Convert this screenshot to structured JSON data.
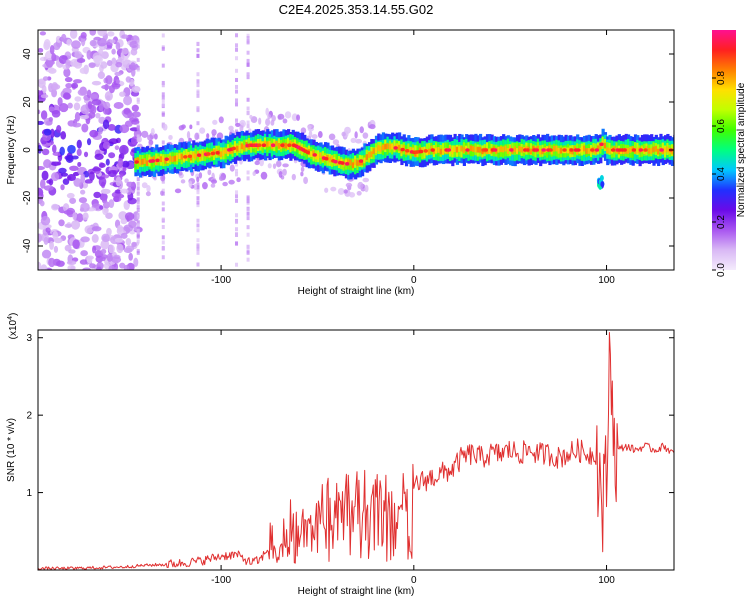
{
  "title": "C2E4.2025.353.14.55.G02",
  "chart_data": [
    {
      "type": "heatmap",
      "name": "spectrogram",
      "xlabel": "Height of straight line (km)",
      "ylabel": "Frequency (Hz)",
      "xlim": [
        -195,
        135
      ],
      "ylim": [
        -50,
        50
      ],
      "xticks": [
        -100,
        0,
        100
      ],
      "xtick_labels": [
        "-100",
        "0",
        "100"
      ],
      "yticks": [
        -40,
        -20,
        0,
        20,
        40
      ],
      "ytick_labels": [
        "-40",
        "-20",
        "0",
        "20",
        "40"
      ],
      "colorbar": {
        "label": "Normalized spectral amplitude",
        "range": [
          0,
          1
        ],
        "ticks": [
          0,
          0.2,
          0.4,
          0.6,
          0.8
        ],
        "tick_labels": [
          "0.0",
          "0.2",
          "0.4",
          "0.6",
          "0.8"
        ],
        "colormap": [
          "#f4ecfc",
          "#d9b8f5",
          "#a855f0",
          "#6a0ae8",
          "#2030ff",
          "#00c8ff",
          "#00ff80",
          "#40ff00",
          "#c0ff00",
          "#ffe000",
          "#ff8000",
          "#ff2020",
          "#ff1090"
        ]
      },
      "ridge": {
        "x": [
          -145,
          -140,
          -130,
          -120,
          -110,
          -100,
          -92,
          -85,
          -75,
          -62,
          -55,
          -48,
          -40,
          -33,
          -28,
          -20,
          -15,
          -10,
          -5,
          0,
          10,
          20,
          40,
          60,
          80,
          95,
          98,
          100,
          110,
          120,
          135
        ],
        "y": [
          -5,
          -5,
          -4,
          -3,
          -2,
          -1,
          1,
          2,
          2,
          2,
          -1,
          -3,
          -5,
          -6,
          -5,
          0,
          1,
          1,
          0,
          -1,
          0,
          0,
          0,
          0,
          0,
          0,
          3,
          0,
          0,
          0,
          0
        ]
      },
      "noise_region_x": [
        -195,
        -143
      ]
    },
    {
      "type": "line",
      "name": "snr",
      "xlabel": "Height of straight line (km)",
      "ylabel": "SNR (10 * v/v)",
      "y_multiplier_label": "(x10",
      "y_multiplier_exp": "4",
      "y_multiplier_close": ")",
      "xlim": [
        -195,
        135
      ],
      "ylim": [
        0,
        3.1
      ],
      "xticks": [
        -100,
        0,
        100
      ],
      "xtick_labels": [
        "-100",
        "0",
        "100"
      ],
      "yticks": [
        1,
        2,
        3
      ],
      "ytick_labels": [
        "1",
        "2",
        "3"
      ],
      "color": "#e03030",
      "series": [
        {
          "name": "SNR",
          "x": [
            -195,
            -180,
            -165,
            -150,
            -140,
            -130,
            -120,
            -110,
            -100,
            -92,
            -85,
            -80,
            -75,
            -70,
            -65,
            -60,
            -55,
            -50,
            -45,
            -40,
            -35,
            -30,
            -25,
            -20,
            -15,
            -10,
            -5,
            0,
            5,
            10,
            15,
            20,
            25,
            30,
            35,
            40,
            45,
            50,
            55,
            60,
            65,
            70,
            75,
            80,
            85,
            90,
            95,
            98,
            100,
            102,
            104,
            106,
            110,
            115,
            120,
            125,
            130,
            135
          ],
          "y": [
            0.02,
            0.02,
            0.03,
            0.04,
            0.06,
            0.07,
            0.09,
            0.12,
            0.18,
            0.2,
            0.1,
            0.12,
            0.3,
            0.45,
            0.6,
            0.65,
            0.7,
            0.75,
            0.85,
            0.8,
            0.9,
            0.95,
            1.0,
            1.0,
            0.9,
            0.85,
            1.05,
            1.1,
            1.15,
            1.2,
            1.25,
            1.3,
            1.45,
            1.5,
            1.45,
            1.5,
            1.5,
            1.55,
            1.5,
            1.55,
            1.5,
            1.5,
            1.45,
            1.5,
            1.55,
            1.5,
            1.5,
            0.8,
            1.2,
            3.1,
            1.5,
            1.55,
            1.6,
            1.55,
            1.6,
            1.55,
            1.6,
            1.5
          ]
        }
      ]
    }
  ]
}
